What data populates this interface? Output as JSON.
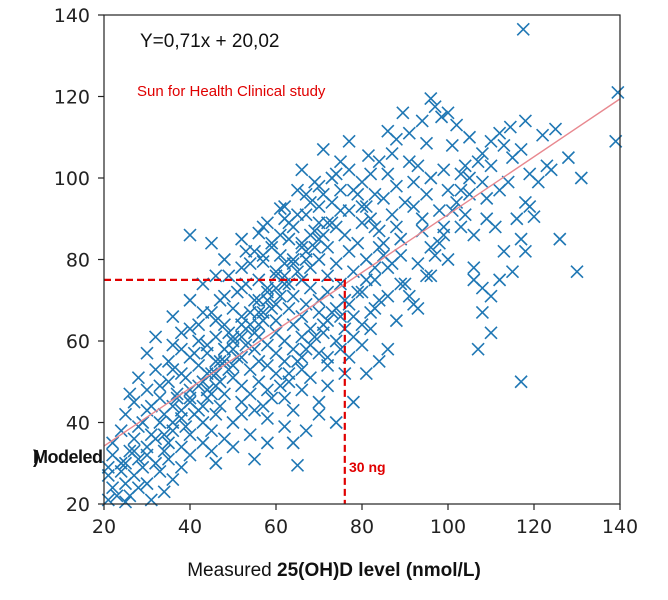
{
  "chart_data": {
    "type": "scatter",
    "title": "",
    "equation": "Y=0,71x + 20,02",
    "study_label": "Sun for Health Clinical study",
    "xlabel_prefix": "Measured ",
    "xlabel_bold": "25(OH)D level (nmol/L)",
    "ylabel_fragment": "Modeled",
    "ylabel_fragment_overlap": ")",
    "xlim": [
      20,
      140
    ],
    "ylim": [
      20,
      140
    ],
    "xticks": [
      20,
      40,
      60,
      80,
      100,
      120,
      140
    ],
    "yticks": [
      20,
      40,
      60,
      80,
      100,
      120,
      140
    ],
    "regression": {
      "slope": 0.71,
      "intercept": 20.02,
      "x_range": [
        20,
        140
      ]
    },
    "threshold": {
      "x": 76,
      "y": 75,
      "label": "30 ng"
    },
    "colors": {
      "points": "#1f77b4",
      "regression": "#e8888f",
      "threshold": "#e00000",
      "study_label": "#e00000"
    },
    "points": [
      [
        117.5,
        136.5
      ],
      [
        139.5,
        121
      ],
      [
        96,
        119.5
      ],
      [
        97,
        117.5
      ],
      [
        100,
        116
      ],
      [
        89.5,
        116
      ],
      [
        98.5,
        115
      ],
      [
        94,
        114
      ],
      [
        118,
        114
      ],
      [
        114.5,
        112.5
      ],
      [
        102,
        113
      ],
      [
        86,
        111.5
      ],
      [
        125,
        112
      ],
      [
        91,
        111
      ],
      [
        112,
        111
      ],
      [
        105,
        110
      ],
      [
        110,
        109
      ],
      [
        122,
        110.5
      ],
      [
        88,
        109.5
      ],
      [
        95,
        108.5
      ],
      [
        139,
        109
      ],
      [
        101,
        108
      ],
      [
        113,
        108
      ],
      [
        117,
        107
      ],
      [
        87,
        106
      ],
      [
        108,
        106
      ],
      [
        81.5,
        105.5
      ],
      [
        84,
        104
      ],
      [
        115,
        105
      ],
      [
        128,
        105
      ],
      [
        91,
        104
      ],
      [
        93,
        103
      ],
      [
        104,
        103
      ],
      [
        110,
        103
      ],
      [
        99,
        102
      ],
      [
        124,
        102
      ],
      [
        77,
        102
      ],
      [
        103,
        101
      ],
      [
        82,
        101
      ],
      [
        86,
        101
      ],
      [
        74,
        101
      ],
      [
        119,
        101
      ],
      [
        131,
        100
      ],
      [
        80,
        99
      ],
      [
        92,
        99
      ],
      [
        96,
        100
      ],
      [
        108,
        99
      ],
      [
        114,
        99
      ],
      [
        70,
        98
      ],
      [
        88,
        98
      ],
      [
        100,
        97
      ],
      [
        75,
        97
      ],
      [
        78,
        97
      ],
      [
        65,
        97
      ],
      [
        112,
        97
      ],
      [
        67,
        96
      ],
      [
        83,
        96
      ],
      [
        95,
        96
      ],
      [
        105,
        96
      ],
      [
        85,
        95
      ],
      [
        102,
        94
      ],
      [
        90,
        94
      ],
      [
        73,
        94
      ],
      [
        118,
        94
      ],
      [
        80,
        93
      ],
      [
        70,
        93
      ],
      [
        92,
        93
      ],
      [
        61,
        92.5
      ],
      [
        98,
        92
      ],
      [
        77,
        92
      ],
      [
        87,
        91
      ],
      [
        67,
        91
      ],
      [
        104,
        91
      ],
      [
        82,
        90
      ],
      [
        62,
        90
      ],
      [
        94,
        90
      ],
      [
        109,
        90
      ],
      [
        120,
        90.5
      ],
      [
        72,
        89
      ],
      [
        80,
        89
      ],
      [
        58,
        89
      ],
      [
        99,
        88
      ],
      [
        74,
        88
      ],
      [
        64,
        88
      ],
      [
        88,
        88
      ],
      [
        103,
        88
      ],
      [
        69,
        87
      ],
      [
        84,
        87
      ],
      [
        94,
        87
      ],
      [
        56,
        86.5
      ],
      [
        76,
        86
      ],
      [
        106,
        86
      ],
      [
        40,
        86
      ],
      [
        63,
        85
      ],
      [
        70,
        85
      ],
      [
        52,
        85
      ],
      [
        89,
        85
      ],
      [
        126,
        85
      ],
      [
        66,
        84
      ],
      [
        79,
        84
      ],
      [
        98,
        84
      ],
      [
        45,
        84
      ],
      [
        59,
        83
      ],
      [
        72,
        83
      ],
      [
        84,
        83
      ],
      [
        96,
        83
      ],
      [
        55,
        82
      ],
      [
        67,
        82
      ],
      [
        77,
        82
      ],
      [
        118,
        82
      ],
      [
        61,
        81
      ],
      [
        89,
        81
      ],
      [
        48,
        80
      ],
      [
        70,
        80
      ],
      [
        81,
        80
      ],
      [
        100,
        80
      ],
      [
        57,
        79.5
      ],
      [
        64,
        79
      ],
      [
        74,
        79
      ],
      [
        93,
        79
      ],
      [
        52,
        78
      ],
      [
        68,
        78
      ],
      [
        86,
        78
      ],
      [
        106,
        78
      ],
      [
        60,
        77
      ],
      [
        78,
        77
      ],
      [
        130,
        77
      ],
      [
        46,
        76
      ],
      [
        72,
        76
      ],
      [
        96,
        76
      ],
      [
        56,
        75
      ],
      [
        66,
        75
      ],
      [
        83,
        75
      ],
      [
        106,
        75
      ],
      [
        62,
        74
      ],
      [
        75,
        74
      ],
      [
        43,
        74
      ],
      [
        90,
        74
      ],
      [
        52,
        73
      ],
      [
        68,
        73
      ],
      [
        108,
        73
      ],
      [
        58,
        72
      ],
      [
        80,
        72
      ],
      [
        72,
        72
      ],
      [
        48,
        71
      ],
      [
        64,
        71
      ],
      [
        86,
        71
      ],
      [
        110,
        71
      ],
      [
        55,
        70
      ],
      [
        70,
        70
      ],
      [
        76,
        70
      ],
      [
        40,
        70
      ],
      [
        60,
        69
      ],
      [
        67,
        69
      ],
      [
        92,
        69
      ],
      [
        50,
        68
      ],
      [
        74,
        68
      ],
      [
        63,
        68
      ],
      [
        83,
        68
      ],
      [
        45,
        67
      ],
      [
        57,
        67
      ],
      [
        70,
        67
      ],
      [
        108,
        67
      ],
      [
        52,
        66
      ],
      [
        66,
        66
      ],
      [
        78,
        66
      ],
      [
        36,
        66
      ],
      [
        60,
        65
      ],
      [
        72,
        65
      ],
      [
        88,
        65
      ],
      [
        48,
        64
      ],
      [
        56,
        64
      ],
      [
        64,
        64
      ],
      [
        42,
        64
      ],
      [
        68,
        63
      ],
      [
        76,
        63
      ],
      [
        53,
        63
      ],
      [
        82,
        63
      ],
      [
        38,
        62
      ],
      [
        60,
        62
      ],
      [
        71,
        62
      ],
      [
        110,
        62
      ],
      [
        46,
        61
      ],
      [
        56,
        61
      ],
      [
        66,
        61
      ],
      [
        32,
        61
      ],
      [
        50,
        60
      ],
      [
        62,
        60
      ],
      [
        74,
        60
      ],
      [
        42,
        60
      ],
      [
        58,
        59
      ],
      [
        68,
        59
      ],
      [
        80,
        59
      ],
      [
        36,
        59
      ],
      [
        48,
        58
      ],
      [
        55,
        58
      ],
      [
        64,
        58
      ],
      [
        107,
        58
      ],
      [
        44,
        57
      ],
      [
        60,
        57
      ],
      [
        70,
        57
      ],
      [
        30,
        57
      ],
      [
        52,
        56
      ],
      [
        66,
        56
      ],
      [
        40,
        56
      ],
      [
        77,
        56
      ],
      [
        56,
        55
      ],
      [
        62,
        55
      ],
      [
        35,
        55
      ],
      [
        47,
        55
      ],
      [
        72,
        54
      ],
      [
        50,
        54
      ],
      [
        58,
        54
      ],
      [
        42,
        54
      ],
      [
        66,
        53
      ],
      [
        32,
        53
      ],
      [
        54,
        53
      ],
      [
        45,
        52
      ],
      [
        60,
        52
      ],
      [
        76,
        52
      ],
      [
        38,
        52
      ],
      [
        50,
        51
      ],
      [
        68,
        51
      ],
      [
        28,
        51
      ],
      [
        56,
        50
      ],
      [
        43,
        50
      ],
      [
        63,
        50
      ],
      [
        117,
        50
      ],
      [
        35,
        50
      ],
      [
        52,
        49
      ],
      [
        72,
        49
      ],
      [
        46,
        49
      ],
      [
        40,
        48
      ],
      [
        58,
        48
      ],
      [
        30,
        48
      ],
      [
        66,
        48
      ],
      [
        48,
        47
      ],
      [
        54,
        47
      ],
      [
        37,
        47
      ],
      [
        62,
        46
      ],
      [
        44,
        46
      ],
      [
        33,
        46
      ],
      [
        52,
        45
      ],
      [
        70,
        45
      ],
      [
        40,
        45
      ],
      [
        27,
        45
      ],
      [
        57,
        44
      ],
      [
        47,
        44
      ],
      [
        36,
        44
      ],
      [
        64,
        43
      ],
      [
        42,
        43
      ],
      [
        30,
        43
      ],
      [
        52,
        42
      ],
      [
        25,
        42
      ],
      [
        46,
        42
      ],
      [
        38,
        41
      ],
      [
        58,
        41
      ],
      [
        33,
        40
      ],
      [
        43,
        40
      ],
      [
        50,
        40
      ],
      [
        28,
        39
      ],
      [
        62,
        39
      ],
      [
        36,
        38
      ],
      [
        45,
        38
      ],
      [
        24,
        38
      ],
      [
        54,
        37
      ],
      [
        31,
        37
      ],
      [
        40,
        37
      ],
      [
        48,
        36
      ],
      [
        27,
        36
      ],
      [
        35,
        35
      ],
      [
        58,
        35
      ],
      [
        43,
        35
      ],
      [
        22,
        35
      ],
      [
        30,
        34
      ],
      [
        38,
        34
      ],
      [
        50,
        34
      ],
      [
        26,
        33
      ],
      [
        34,
        33
      ],
      [
        45,
        33
      ],
      [
        30,
        32
      ],
      [
        22,
        32
      ],
      [
        40,
        32
      ],
      [
        28,
        31
      ],
      [
        35,
        31
      ],
      [
        55,
        31
      ],
      [
        25,
        30
      ],
      [
        32,
        30
      ],
      [
        46,
        30
      ],
      [
        21,
        29
      ],
      [
        29,
        29
      ],
      [
        38,
        29
      ],
      [
        65,
        29.5
      ],
      [
        24,
        28
      ],
      [
        33,
        28
      ],
      [
        27,
        27
      ],
      [
        21,
        27
      ],
      [
        36,
        26
      ],
      [
        25,
        25
      ],
      [
        30,
        25
      ],
      [
        22,
        24
      ],
      [
        28,
        24
      ],
      [
        34,
        23
      ],
      [
        23,
        22
      ],
      [
        26,
        22
      ],
      [
        31,
        21
      ],
      [
        21,
        21
      ],
      [
        25,
        20.5
      ],
      [
        24,
        30
      ],
      [
        27,
        33
      ],
      [
        32,
        36
      ],
      [
        29,
        40
      ],
      [
        26,
        47
      ],
      [
        31,
        44
      ],
      [
        34,
        42
      ],
      [
        37,
        46
      ],
      [
        33,
        49
      ],
      [
        39,
        51
      ],
      [
        36,
        53
      ],
      [
        41,
        57
      ],
      [
        44,
        59
      ],
      [
        38,
        58
      ],
      [
        40,
        63
      ],
      [
        46,
        65
      ],
      [
        49,
        62
      ],
      [
        43,
        67
      ],
      [
        47,
        70
      ],
      [
        51,
        72
      ],
      [
        53,
        74
      ],
      [
        49,
        76
      ],
      [
        54,
        79
      ],
      [
        57,
        81
      ],
      [
        53,
        82
      ],
      [
        59,
        84
      ],
      [
        61,
        86
      ],
      [
        57,
        88
      ],
      [
        63,
        89
      ],
      [
        65,
        91
      ],
      [
        62,
        93
      ],
      [
        68,
        94
      ],
      [
        71,
        96
      ],
      [
        69,
        99
      ],
      [
        73,
        100
      ],
      [
        66,
        102
      ],
      [
        75,
        104
      ],
      [
        71,
        107
      ],
      [
        77,
        109
      ],
      [
        79,
        96
      ],
      [
        81,
        93
      ],
      [
        83,
        88
      ],
      [
        85,
        84
      ],
      [
        87,
        79
      ],
      [
        89,
        74
      ],
      [
        91,
        71
      ],
      [
        93,
        68
      ],
      [
        95,
        76
      ],
      [
        97,
        81
      ],
      [
        99,
        86
      ],
      [
        101,
        92
      ],
      [
        103,
        97
      ],
      [
        105,
        100
      ],
      [
        107,
        104
      ],
      [
        109,
        95
      ],
      [
        111,
        88
      ],
      [
        113,
        82
      ],
      [
        115,
        77
      ],
      [
        117,
        85
      ],
      [
        119,
        93
      ],
      [
        121,
        99
      ],
      [
        123,
        103
      ],
      [
        116,
        90
      ],
      [
        112,
        75
      ],
      [
        74,
        40
      ],
      [
        70,
        42
      ],
      [
        67,
        38
      ],
      [
        64,
        35
      ],
      [
        78,
        45
      ],
      [
        81,
        52
      ],
      [
        84,
        55
      ],
      [
        86,
        58
      ],
      [
        72,
        56
      ],
      [
        75,
        58
      ],
      [
        78,
        61
      ],
      [
        80,
        64
      ],
      [
        82,
        67
      ],
      [
        84,
        70
      ],
      [
        55,
        43
      ],
      [
        59,
        46
      ],
      [
        61,
        49
      ],
      [
        63,
        52
      ],
      [
        65,
        55
      ],
      [
        67,
        58
      ],
      [
        69,
        61
      ],
      [
        71,
        64
      ],
      [
        73,
        67
      ],
      [
        75,
        66
      ],
      [
        77,
        69
      ],
      [
        79,
        72
      ],
      [
        81,
        75
      ],
      [
        83,
        78
      ],
      [
        85,
        81
      ],
      [
        44,
        48
      ],
      [
        46,
        52
      ],
      [
        48,
        55
      ],
      [
        50,
        58
      ],
      [
        52,
        61
      ],
      [
        54,
        64
      ],
      [
        56,
        67
      ],
      [
        58,
        70
      ],
      [
        60,
        73
      ],
      [
        62,
        76
      ],
      [
        64,
        80
      ],
      [
        66,
        83
      ],
      [
        68,
        86
      ],
      [
        70,
        89
      ],
      [
        39,
        39
      ],
      [
        41,
        42
      ],
      [
        43,
        44
      ],
      [
        45,
        47
      ],
      [
        47,
        50
      ],
      [
        49,
        53
      ],
      [
        51,
        56
      ],
      [
        53,
        59
      ],
      [
        55,
        62
      ],
      [
        57,
        65
      ],
      [
        59,
        68
      ],
      [
        61,
        71
      ],
      [
        63,
        74
      ],
      [
        65,
        77
      ],
      [
        67,
        80
      ],
      [
        69,
        83
      ],
      [
        71,
        86
      ],
      [
        73,
        89
      ],
      [
        75,
        92
      ],
      [
        34,
        37
      ],
      [
        36,
        40
      ],
      [
        38,
        43
      ],
      [
        40,
        46
      ],
      [
        42,
        49
      ],
      [
        44,
        52
      ],
      [
        46,
        55
      ],
      [
        48,
        58
      ],
      [
        50,
        61
      ],
      [
        52,
        64
      ],
      [
        54,
        67
      ],
      [
        56,
        70
      ],
      [
        58,
        73
      ],
      [
        60,
        76
      ],
      [
        62,
        79
      ]
    ]
  }
}
